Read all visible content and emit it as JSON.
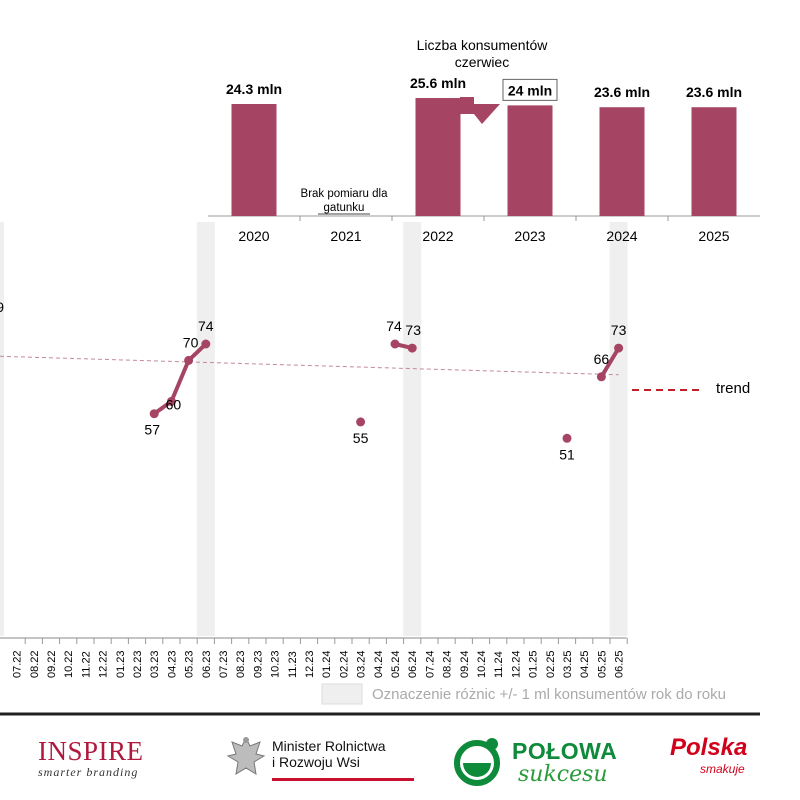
{
  "chart_data": [
    {
      "type": "bar",
      "title": "Liczba konsumentów czerwiec",
      "categories": [
        "2020",
        "2021",
        "2022",
        "2023",
        "2024",
        "2025"
      ],
      "values": [
        24.3,
        null,
        25.6,
        24,
        23.6,
        23.6
      ],
      "data_labels": [
        "24.3 mln",
        "",
        "25.6 mln",
        "24 mln",
        "23.6 mln",
        "23.6 mln"
      ],
      "missing_note": "Brak pomiaru dla gatunku",
      "missing_index": 1,
      "highlight_index": 3,
      "color": "#a64563"
    },
    {
      "type": "line",
      "x": [
        "07.22",
        "08.22",
        "09.22",
        "10.22",
        "11.22",
        "12.22",
        "01.23",
        "02.23",
        "03.23",
        "04.23",
        "05.23",
        "06.23",
        "07.23",
        "08.23",
        "09.23",
        "10.23",
        "11.23",
        "12.23",
        "01.24",
        "02.24",
        "03.24",
        "04.24",
        "05.24",
        "06.24",
        "07.24",
        "08.24",
        "09.24",
        "10.24",
        "11.24",
        "12.24",
        "01.25",
        "02.25",
        "03.25",
        "04.25",
        "05.25",
        "06.25"
      ],
      "series": [
        {
          "values": [
            null,
            null,
            null,
            null,
            null,
            null,
            null,
            null,
            57,
            60,
            70,
            74,
            null,
            null,
            null,
            null,
            null,
            null,
            null,
            null,
            55,
            null,
            74,
            73,
            null,
            null,
            null,
            null,
            null,
            null,
            null,
            null,
            51,
            null,
            66,
            73
          ]
        }
      ],
      "point_labels": {
        "8": "57",
        "9": "60",
        "10": "70",
        "11": "74",
        "20": "55",
        "22": "74",
        "23": "73",
        "32": "51",
        "34": "66",
        "35": "73"
      },
      "clipped_label": "9",
      "trend": {
        "start": 71,
        "end": 66.5
      },
      "trend_label": "trend",
      "highlight_bands": [
        "06.23",
        "06.24",
        "06.25"
      ],
      "band_legend": "Oznaczenie różnic +/- 1 ml konsumentów rok do roku",
      "color": "#a64563",
      "trend_color": "#c0202a"
    }
  ],
  "logos": {
    "inspire": {
      "main": "INSPIRE",
      "sub": "smarter branding"
    },
    "minister": {
      "line1": "Minister Rolnictwa",
      "line2": "i Rozwoju Wsi"
    },
    "polowa": {
      "main": "POŁOWA",
      "sub": "sukcesu"
    },
    "polska": {
      "main": "Polska",
      "sub": "smakuje"
    }
  }
}
